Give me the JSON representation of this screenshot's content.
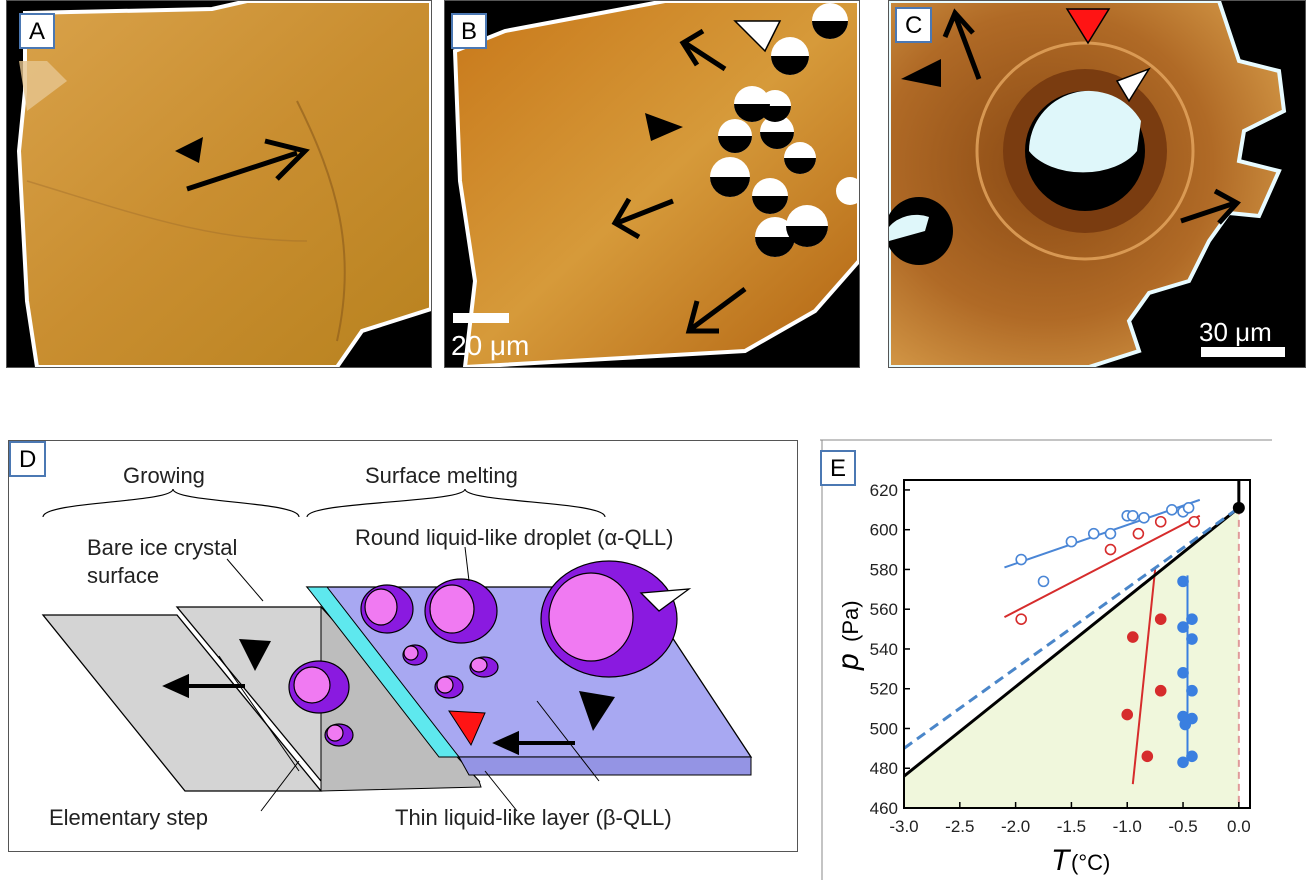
{
  "figure": {
    "panel_a": {
      "label": "A"
    },
    "panel_b": {
      "label": "B",
      "scale_bar": "20 μm"
    },
    "panel_c": {
      "label": "C",
      "scale_bar": "30 μm"
    },
    "panel_d": {
      "label": "D",
      "heading_growing": "Growing",
      "heading_melting": "Surface melting",
      "bare_ice_line1": "Bare ice crystal",
      "bare_ice_line2": "surface",
      "round_droplet": "Round liquid-like droplet (α-QLL)",
      "elementary_step": "Elementary step",
      "thin_layer": "Thin liquid-like layer (β-QLL)"
    },
    "panel_e": {
      "label": "E"
    }
  },
  "chart_data": {
    "type": "scatter",
    "xlabel": "T",
    "xunit": "(°C)",
    "ylabel": "p",
    "yunit": "(Pa)",
    "xlim": [
      -3.0,
      0.1
    ],
    "ylim": [
      460,
      625
    ],
    "xticks": [
      "-3.0",
      "-2.5",
      "-2.0",
      "-1.5",
      "-1.0",
      "-0.5",
      "0.0"
    ],
    "yticks": [
      "460",
      "480",
      "500",
      "520",
      "540",
      "560",
      "580",
      "600",
      "620"
    ],
    "series": [
      {
        "color": "#4a86d6",
        "marker": "open",
        "points": [
          [
            -1.95,
            585
          ],
          [
            -1.75,
            574
          ],
          [
            -1.5,
            594
          ],
          [
            -1.3,
            598
          ],
          [
            -1.15,
            598
          ],
          [
            -1.0,
            607
          ],
          [
            -0.95,
            607
          ],
          [
            -0.85,
            606
          ],
          [
            -0.6,
            610
          ],
          [
            -0.5,
            609
          ],
          [
            -0.45,
            611
          ]
        ],
        "fit": [
          [
            -2.1,
            581
          ],
          [
            -0.35,
            615
          ]
        ]
      },
      {
        "color": "#d62c2c",
        "marker": "open",
        "points": [
          [
            -1.95,
            555
          ],
          [
            -1.15,
            590
          ],
          [
            -0.9,
            598
          ],
          [
            -0.7,
            604
          ],
          [
            -0.4,
            604
          ]
        ],
        "fit": [
          [
            -2.1,
            556
          ],
          [
            -0.35,
            607
          ]
        ]
      },
      {
        "color": "#d62c2c",
        "marker": "filled",
        "points": [
          [
            -0.95,
            546
          ],
          [
            -0.7,
            555
          ],
          [
            -1.0,
            507
          ],
          [
            -0.7,
            519
          ],
          [
            -0.82,
            486
          ]
        ],
        "fit": [
          [
            -0.95,
            472
          ],
          [
            -0.75,
            580
          ]
        ]
      },
      {
        "color": "#3a7fe0",
        "marker": "filled",
        "points": [
          [
            -0.5,
            574
          ],
          [
            -0.5,
            551
          ],
          [
            -0.42,
            555
          ],
          [
            -0.42,
            545
          ],
          [
            -0.5,
            528
          ],
          [
            -0.42,
            519
          ],
          [
            -0.5,
            506
          ],
          [
            -0.48,
            502
          ],
          [
            -0.42,
            505
          ],
          [
            -0.5,
            483
          ],
          [
            -0.42,
            486
          ]
        ],
        "fit": [
          [
            -0.46,
            482
          ],
          [
            -0.46,
            577
          ]
        ]
      },
      {
        "color": "#000000",
        "marker": "line",
        "fit": [
          [
            -3.0,
            476
          ],
          [
            0.0,
            611
          ]
        ]
      },
      {
        "color": "#4a86c9",
        "marker": "dashed",
        "fit": [
          [
            -3.0,
            490
          ],
          [
            0.0,
            611
          ]
        ]
      }
    ],
    "triple_point": [
      0.0,
      611
    ],
    "region_fill": "#f0f7dc"
  }
}
